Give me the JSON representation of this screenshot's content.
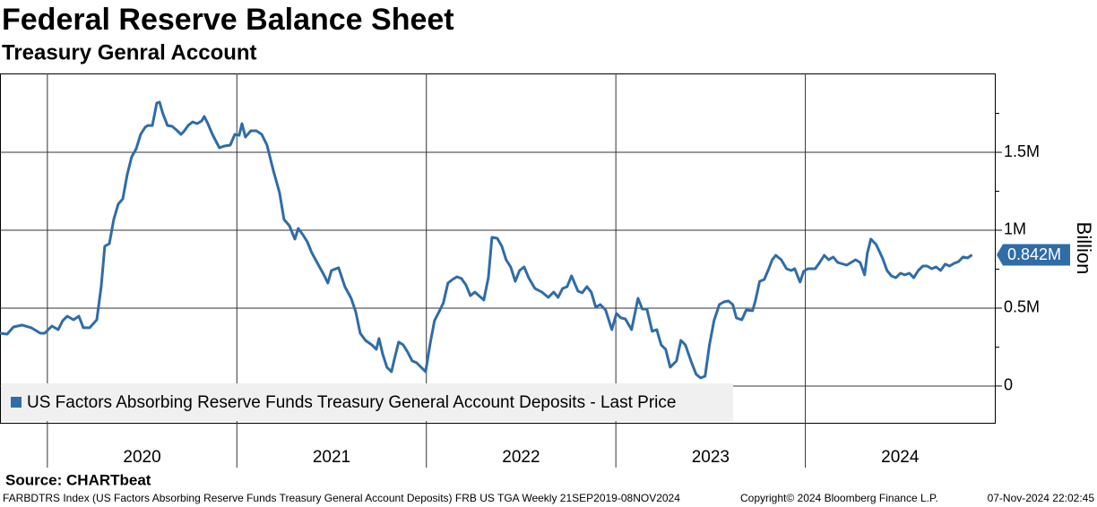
{
  "chart_data": {
    "type": "line",
    "title": "Federal Reserve Balance Sheet",
    "subtitle": "Treasury Genral Account",
    "y_label": "Billion",
    "source": "Source: CHARTbeat",
    "footer": [
      "FARBDTRS Index (US Factors Absorbing Reserve Funds Treasury General Account Deposits) FRB US TGA  Weekly 21SEP2019-08NOV2024",
      "Copyright© 2024 Bloomberg Finance L.P.",
      "07-Nov-2024 22:02:45"
    ],
    "xlim": [
      2019.75,
      2025
    ],
    "ylim": [
      -236000,
      2006000
    ],
    "yticks": [
      0,
      {
        "value": 500000,
        "label": "0.5M"
      },
      {
        "value": 1000000,
        "label": "1M"
      },
      {
        "value": 1500000,
        "label": "1.5M"
      }
    ],
    "yminor": [
      250000,
      750000,
      1250000,
      1750000
    ],
    "xticks": [
      {
        "value": 2020.5,
        "label": "2020"
      },
      {
        "value": 2021.5,
        "label": "2021"
      },
      {
        "value": 2022.5,
        "label": "2022"
      },
      {
        "value": 2023.5,
        "label": "2023"
      },
      {
        "value": 2024.5,
        "label": "2024"
      }
    ],
    "xgrid": [
      2020,
      2021,
      2022,
      2023,
      2024
    ],
    "grid": true,
    "last_price": {
      "value": 842000,
      "label": "0.842M"
    },
    "x": [
      2019.75,
      2019.788,
      2019.821,
      2019.868,
      2019.915,
      2019.963,
      2019.986,
      2020.024,
      2020.057,
      2020.081,
      2020.105,
      2020.138,
      2020.166,
      2020.19,
      2020.223,
      2020.261,
      2020.284,
      2020.303,
      2020.327,
      2020.35,
      2020.374,
      2020.398,
      2020.421,
      2020.445,
      2020.469,
      2020.492,
      2020.516,
      2020.53,
      2020.554,
      2020.577,
      2020.592,
      2020.61,
      2020.634,
      2020.658,
      2020.681,
      2020.705,
      2020.719,
      2020.743,
      2020.767,
      2020.79,
      2020.814,
      2020.828,
      2020.847,
      2020.871,
      2020.908,
      2020.932,
      2020.965,
      2020.989,
      2021.012,
      2021.027,
      2021.045,
      2021.074,
      2021.102,
      2021.131,
      2021.159,
      2021.192,
      2021.225,
      2021.249,
      2021.277,
      2021.306,
      2021.324,
      2021.348,
      2021.372,
      2021.395,
      2021.428,
      2021.462,
      2021.48,
      2021.499,
      2021.537,
      2021.57,
      2021.603,
      2021.627,
      2021.651,
      2021.679,
      2021.712,
      2021.736,
      2021.75,
      2021.769,
      2021.792,
      2021.816,
      2021.83,
      2021.854,
      2021.878,
      2021.901,
      2021.925,
      2021.949,
      2021.972,
      2021.996,
      2022.019,
      2022.043,
      2022.067,
      2022.09,
      2022.114,
      2022.138,
      2022.161,
      2022.185,
      2022.209,
      2022.232,
      2022.256,
      2022.303,
      2022.327,
      2022.346,
      2022.374,
      2022.398,
      2022.421,
      2022.445,
      2022.469,
      2022.492,
      2022.516,
      2022.54,
      2022.573,
      2022.61,
      2022.643,
      2022.672,
      2022.695,
      2022.719,
      2022.743,
      2022.766,
      2022.8,
      2022.823,
      2022.847,
      2022.87,
      2022.894,
      2022.918,
      2022.946,
      2022.979,
      2023.003,
      2023.027,
      2023.05,
      2023.083,
      2023.117,
      2023.14,
      2023.164,
      2023.192,
      2023.216,
      2023.239,
      2023.263,
      2023.287,
      2023.32,
      2023.343,
      2023.367,
      2023.4,
      2023.424,
      2023.447,
      2023.471,
      2023.494,
      2023.518,
      2023.546,
      2023.57,
      2023.594,
      2023.617,
      2023.636,
      2023.665,
      2023.688,
      2023.721,
      2023.736,
      2023.759,
      2023.783,
      2023.807,
      2023.825,
      2023.844,
      2023.873,
      2023.901,
      2023.925,
      2023.944,
      2023.972,
      2023.991,
      2024.014,
      2024.052,
      2024.076,
      2024.1,
      2024.123,
      2024.147,
      2024.171,
      2024.218,
      2024.265,
      2024.289,
      2024.313,
      2024.327,
      2024.346,
      2024.374,
      2024.407,
      2024.431,
      2024.454,
      2024.478,
      2024.502,
      2024.525,
      2024.549,
      2024.572,
      2024.596,
      2024.62,
      2024.643,
      2024.667,
      2024.69,
      2024.714,
      2024.738,
      2024.761,
      2024.785,
      2024.809,
      2024.832,
      2024.856,
      2024.88
    ],
    "series": [
      {
        "name": "US Factors Absorbing Reserve Funds Treasury General Account Deposits - Last Price",
        "color": "#2f6ca8",
        "values": [
          339000,
          333000,
          379000,
          391000,
          374000,
          339000,
          339000,
          385000,
          362000,
          420000,
          448000,
          425000,
          448000,
          374000,
          374000,
          425000,
          638000,
          897000,
          914000,
          1069000,
          1167000,
          1201000,
          1356000,
          1471000,
          1523000,
          1615000,
          1661000,
          1672000,
          1672000,
          1816000,
          1822000,
          1747000,
          1672000,
          1667000,
          1644000,
          1615000,
          1632000,
          1672000,
          1695000,
          1684000,
          1701000,
          1730000,
          1684000,
          1615000,
          1529000,
          1540000,
          1546000,
          1615000,
          1609000,
          1684000,
          1598000,
          1638000,
          1638000,
          1615000,
          1546000,
          1385000,
          1241000,
          1069000,
          1029000,
          943000,
          1011000,
          971000,
          925000,
          856000,
          782000,
          707000,
          661000,
          741000,
          759000,
          638000,
          563000,
          477000,
          339000,
          293000,
          264000,
          236000,
          305000,
          207000,
          121000,
          92000,
          167000,
          282000,
          264000,
          218000,
          161000,
          149000,
          121000,
          92000,
          264000,
          420000,
          477000,
          534000,
          661000,
          684000,
          701000,
          690000,
          649000,
          580000,
          603000,
          552000,
          695000,
          954000,
          948000,
          897000,
          810000,
          764000,
          672000,
          741000,
          764000,
          695000,
          626000,
          603000,
          569000,
          603000,
          569000,
          626000,
          638000,
          707000,
          609000,
          598000,
          638000,
          603000,
          506000,
          523000,
          488000,
          362000,
          466000,
          437000,
          431000,
          362000,
          563000,
          494000,
          494000,
          351000,
          362000,
          264000,
          236000,
          121000,
          161000,
          293000,
          264000,
          149000,
          75000,
          52000,
          63000,
          264000,
          420000,
          523000,
          540000,
          546000,
          523000,
          437000,
          425000,
          488000,
          483000,
          546000,
          672000,
          684000,
          753000,
          810000,
          839000,
          810000,
          753000,
          741000,
          753000,
          667000,
          736000,
          753000,
          753000,
          793000,
          839000,
          810000,
          828000,
          793000,
          776000,
          810000,
          793000,
          713000,
          851000,
          943000,
          908000,
          822000,
          741000,
          707000,
          695000,
          724000,
          713000,
          724000,
          695000,
          741000,
          770000,
          770000,
          753000,
          764000,
          741000,
          782000,
          770000,
          787000,
          799000,
          828000,
          822000,
          842000
        ]
      }
    ]
  }
}
